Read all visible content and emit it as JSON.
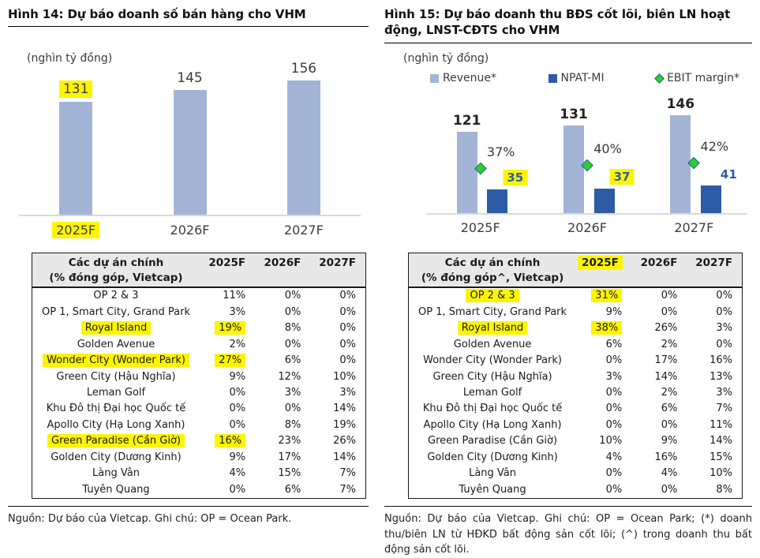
{
  "colors": {
    "light_blue": "#a3b4d6",
    "dark_blue": "#2e5ba6",
    "green": "#2bd12b",
    "highlight": "#fdf401",
    "axis": "#d9d9d9",
    "header_bg": "#e8e8e8"
  },
  "figures": [
    {
      "title": "Hình 14: Dự báo doanh số bán hàng cho VHM",
      "unit_label": "(nghìn tỷ đồng)",
      "source_note": "Nguồn: Dự báo của Vietcap. Ghi chú: OP = Ocean Park.",
      "chart_data": {
        "type": "bar",
        "title": "Dự báo doanh số bán hàng cho VHM",
        "ylabel": "nghìn tỷ đồng",
        "categories": [
          "2025F",
          "2026F",
          "2027F"
        ],
        "values": [
          131,
          145,
          156
        ],
        "ylim": [
          0,
          165
        ],
        "grid": false,
        "bar_color": "#a3b4d6",
        "highlighted_value_labels": [
          131
        ],
        "highlighted_categories": [
          "2025F"
        ]
      },
      "table": {
        "header_line1": "Các dự án chính",
        "header_line2": "(% đóng góp, Vietcap)",
        "year_columns": [
          "2025F",
          "2026F",
          "2027F"
        ],
        "highlighted_year_columns": [],
        "rows": [
          {
            "name": "OP 2 & 3",
            "values": [
              "11%",
              "0%",
              "0%"
            ],
            "hl_name": false,
            "hl_values": []
          },
          {
            "name": "OP 1, Smart City, Grand Park",
            "values": [
              "3%",
              "0%",
              "0%"
            ],
            "hl_name": false,
            "hl_values": []
          },
          {
            "name": "Royal Island",
            "values": [
              "19%",
              "8%",
              "0%"
            ],
            "hl_name": true,
            "hl_values": [
              0
            ]
          },
          {
            "name": "Golden Avenue",
            "values": [
              "2%",
              "0%",
              "0%"
            ],
            "hl_name": false,
            "hl_values": []
          },
          {
            "name": "Wonder City (Wonder Park)",
            "values": [
              "27%",
              "6%",
              "0%"
            ],
            "hl_name": true,
            "hl_values": [
              0
            ]
          },
          {
            "name": "Green City (Hậu Nghĩa)",
            "values": [
              "9%",
              "12%",
              "10%"
            ],
            "hl_name": false,
            "hl_values": []
          },
          {
            "name": "Leman Golf",
            "values": [
              "0%",
              "3%",
              "3%"
            ],
            "hl_name": false,
            "hl_values": []
          },
          {
            "name": "Khu Đô thị Đại học Quốc tế",
            "values": [
              "0%",
              "0%",
              "14%"
            ],
            "hl_name": false,
            "hl_values": []
          },
          {
            "name": "Apollo City (Hạ Long Xanh)",
            "values": [
              "0%",
              "8%",
              "19%"
            ],
            "hl_name": false,
            "hl_values": []
          },
          {
            "name": "Green Paradise (Cần Giờ)",
            "values": [
              "16%",
              "23%",
              "26%"
            ],
            "hl_name": true,
            "hl_values": [
              0
            ]
          },
          {
            "name": "Golden City (Dương Kinh)",
            "values": [
              "9%",
              "17%",
              "14%"
            ],
            "hl_name": false,
            "hl_values": []
          },
          {
            "name": "Làng Vân",
            "values": [
              "4%",
              "15%",
              "7%"
            ],
            "hl_name": false,
            "hl_values": []
          },
          {
            "name": "Tuyên Quang",
            "values": [
              "0%",
              "6%",
              "7%"
            ],
            "hl_name": false,
            "hl_values": []
          }
        ]
      }
    },
    {
      "title": "Hình 15: Dự báo doanh thu BĐS cốt lõi, biên LN hoạt động, LNST-CĐTS cho VHM",
      "unit_label": "(nghìn tỷ đồng)",
      "source_note": "Nguồn: Dự báo của Vietcap. Ghi chú: OP = Ocean Park; (*) doanh thu/biên LN từ HĐKD bất động sản cốt lõi; (^) trong doanh thu bất động sản cốt lõi.",
      "chart_data": {
        "type": "bar",
        "subtype": "grouped_bars_with_points",
        "title": "Dự báo doanh thu BĐS cốt lõi, biên LN hoạt động, LNST-CĐTS cho VHM",
        "ylabel": "nghìn tỷ đồng",
        "categories": [
          "2025F",
          "2026F",
          "2027F"
        ],
        "legend_position": "top",
        "grid": false,
        "series": [
          {
            "name": "Revenue*",
            "kind": "bar",
            "color": "#a3b4d6",
            "values": [
              121,
              131,
              146
            ],
            "highlighted_values": []
          },
          {
            "name": "NPAT-MI",
            "kind": "bar",
            "color": "#2e5ba6",
            "values": [
              35,
              37,
              41
            ],
            "highlighted_values": [
              35,
              37
            ]
          },
          {
            "name": "EBIT margin*",
            "kind": "point",
            "marker": "diamond",
            "color": "#2bd12b",
            "values": [
              37,
              40,
              42
            ],
            "unit": "%"
          }
        ]
      },
      "table": {
        "header_line1": "Các dự án chính",
        "header_line2": "(% đóng góp^, Vietcap)",
        "year_columns": [
          "2025F",
          "2026F",
          "2027F"
        ],
        "highlighted_year_columns": [
          "2025F"
        ],
        "rows": [
          {
            "name": "OP 2 & 3",
            "values": [
              "31%",
              "0%",
              "0%"
            ],
            "hl_name": true,
            "hl_values": [
              0
            ]
          },
          {
            "name": "OP 1, Smart City, Grand Park",
            "values": [
              "9%",
              "0%",
              "0%"
            ],
            "hl_name": false,
            "hl_values": []
          },
          {
            "name": "Royal Island",
            "values": [
              "38%",
              "26%",
              "3%"
            ],
            "hl_name": true,
            "hl_values": [
              0
            ]
          },
          {
            "name": "Golden Avenue",
            "values": [
              "6%",
              "2%",
              "0%"
            ],
            "hl_name": false,
            "hl_values": []
          },
          {
            "name": "Wonder City (Wonder Park)",
            "values": [
              "0%",
              "17%",
              "16%"
            ],
            "hl_name": false,
            "hl_values": []
          },
          {
            "name": "Green City (Hậu Nghĩa)",
            "values": [
              "3%",
              "14%",
              "13%"
            ],
            "hl_name": false,
            "hl_values": []
          },
          {
            "name": "Leman Golf",
            "values": [
              "0%",
              "2%",
              "3%"
            ],
            "hl_name": false,
            "hl_values": []
          },
          {
            "name": "Khu Đô thị Đại học Quốc tế",
            "values": [
              "0%",
              "6%",
              "7%"
            ],
            "hl_name": false,
            "hl_values": []
          },
          {
            "name": "Apollo City (Hạ Long Xanh)",
            "values": [
              "0%",
              "0%",
              "11%"
            ],
            "hl_name": false,
            "hl_values": []
          },
          {
            "name": "Green Paradise (Cần Giờ)",
            "values": [
              "10%",
              "9%",
              "14%"
            ],
            "hl_name": false,
            "hl_values": []
          },
          {
            "name": "Golden City (Dương Kinh)",
            "values": [
              "4%",
              "16%",
              "15%"
            ],
            "hl_name": false,
            "hl_values": []
          },
          {
            "name": "Làng Vân",
            "values": [
              "0%",
              "4%",
              "10%"
            ],
            "hl_name": false,
            "hl_values": []
          },
          {
            "name": "Tuyên Quang",
            "values": [
              "0%",
              "0%",
              "8%"
            ],
            "hl_name": false,
            "hl_values": []
          }
        ]
      }
    }
  ]
}
